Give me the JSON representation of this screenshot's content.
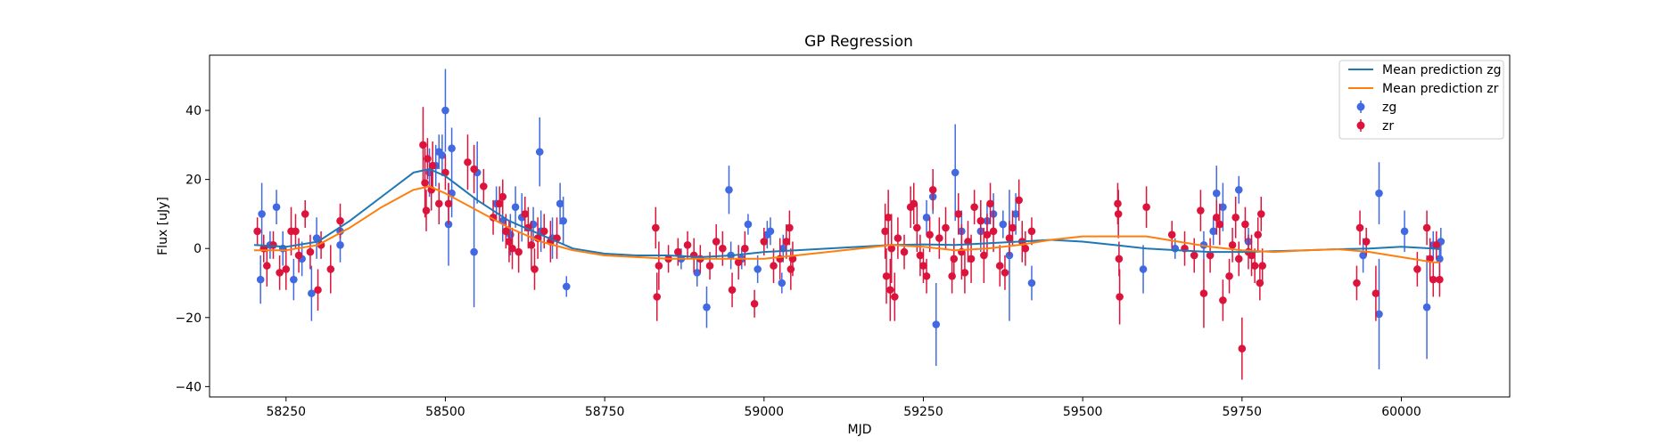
{
  "chart_data": {
    "type": "scatter",
    "title": "GP Regression",
    "xlabel": "MJD",
    "ylabel": "Flux [uJy]",
    "xlim": [
      58130,
      60170
    ],
    "ylim": [
      -43,
      56
    ],
    "xticks": [
      58250,
      58500,
      58750,
      59000,
      59250,
      59500,
      59750,
      60000
    ],
    "yticks": [
      -40,
      -20,
      0,
      20,
      40
    ],
    "grid": false,
    "legend_position": "top-right",
    "legend": [
      "Mean prediction zg",
      "Mean prediction zr",
      "zg",
      "zr"
    ],
    "series": [
      {
        "name": "zg",
        "kind": "errorbar",
        "color": "#4169e1",
        "points": [
          [
            58210,
            -9,
            7
          ],
          [
            58212,
            10,
            9
          ],
          [
            58225,
            1,
            4
          ],
          [
            58235,
            12,
            5
          ],
          [
            58245,
            0,
            5
          ],
          [
            58262,
            -9,
            6
          ],
          [
            58275,
            -3,
            5
          ],
          [
            58290,
            -13,
            8
          ],
          [
            58298,
            3,
            6
          ],
          [
            58335,
            1,
            5
          ],
          [
            58335,
            5,
            5
          ],
          [
            58475,
            22,
            7
          ],
          [
            58485,
            24,
            6
          ],
          [
            58490,
            28,
            5
          ],
          [
            58495,
            27,
            6
          ],
          [
            58500,
            40,
            12
          ],
          [
            58505,
            7,
            12
          ],
          [
            58510,
            29,
            6
          ],
          [
            58510,
            16,
            7
          ],
          [
            58545,
            -1,
            16
          ],
          [
            58550,
            22,
            9
          ],
          [
            58580,
            13,
            5
          ],
          [
            58590,
            8,
            6
          ],
          [
            58602,
            4,
            6
          ],
          [
            58610,
            12,
            6
          ],
          [
            58620,
            9,
            7
          ],
          [
            58638,
            7,
            5
          ],
          [
            58648,
            28,
            10
          ],
          [
            58650,
            5,
            6
          ],
          [
            58668,
            3,
            6
          ],
          [
            58680,
            13,
            6
          ],
          [
            58685,
            8,
            7
          ],
          [
            58690,
            -11,
            3
          ],
          [
            58870,
            -3,
            3
          ],
          [
            58895,
            -7,
            4
          ],
          [
            58910,
            -17,
            6
          ],
          [
            58945,
            17,
            7
          ],
          [
            58948,
            -2,
            4
          ],
          [
            58965,
            -3,
            3
          ],
          [
            58975,
            7,
            3
          ],
          [
            58990,
            -6,
            4
          ],
          [
            59005,
            4,
            4
          ],
          [
            59010,
            5,
            4
          ],
          [
            59028,
            -10,
            3
          ],
          [
            59030,
            0,
            4
          ],
          [
            59255,
            9,
            5
          ],
          [
            59265,
            15,
            5
          ],
          [
            59270,
            -22,
            12
          ],
          [
            59300,
            22,
            14
          ],
          [
            59310,
            5,
            6
          ],
          [
            59340,
            5,
            6
          ],
          [
            59350,
            8,
            5
          ],
          [
            59360,
            10,
            6
          ],
          [
            59375,
            7,
            4
          ],
          [
            59385,
            -2,
            19
          ],
          [
            59395,
            10,
            6
          ],
          [
            59420,
            -10,
            5
          ],
          [
            59595,
            -6,
            7
          ],
          [
            59645,
            0,
            3
          ],
          [
            59690,
            1,
            4
          ],
          [
            59705,
            5,
            4
          ],
          [
            59710,
            16,
            8
          ],
          [
            59720,
            12,
            7
          ],
          [
            59745,
            17,
            4
          ],
          [
            59760,
            2,
            4
          ],
          [
            59940,
            -2,
            5
          ],
          [
            59965,
            16,
            9
          ],
          [
            59965,
            -19,
            16
          ],
          [
            60005,
            5,
            6
          ],
          [
            60040,
            -17,
            15
          ],
          [
            60050,
            1,
            4
          ],
          [
            60060,
            -3,
            6
          ],
          [
            60062,
            2,
            4
          ]
        ]
      },
      {
        "name": "zr",
        "kind": "errorbar",
        "color": "#dc143c",
        "points": [
          [
            58205,
            5,
            4
          ],
          [
            58215,
            0,
            4
          ],
          [
            58220,
            -5,
            6
          ],
          [
            58230,
            1,
            4
          ],
          [
            58240,
            -7,
            5
          ],
          [
            58250,
            -6,
            6
          ],
          [
            58258,
            5,
            7
          ],
          [
            58265,
            5,
            5
          ],
          [
            58270,
            -2,
            5
          ],
          [
            58280,
            10,
            4
          ],
          [
            58288,
            -1,
            5
          ],
          [
            58300,
            -12,
            6
          ],
          [
            58305,
            1,
            4
          ],
          [
            58320,
            -6,
            7
          ],
          [
            58335,
            8,
            5
          ],
          [
            58465,
            30,
            11
          ],
          [
            58468,
            19,
            10
          ],
          [
            58470,
            11,
            6
          ],
          [
            58472,
            26,
            6
          ],
          [
            58478,
            17,
            6
          ],
          [
            58480,
            24,
            7
          ],
          [
            58490,
            13,
            6
          ],
          [
            58500,
            22,
            5
          ],
          [
            58505,
            13,
            6
          ],
          [
            58535,
            25,
            8
          ],
          [
            58545,
            23,
            7
          ],
          [
            58560,
            18,
            5
          ],
          [
            58575,
            9,
            5
          ],
          [
            58585,
            13,
            5
          ],
          [
            58590,
            15,
            5
          ],
          [
            58595,
            5,
            5
          ],
          [
            58600,
            2,
            6
          ],
          [
            58605,
            0,
            6
          ],
          [
            58615,
            -1,
            6
          ],
          [
            58625,
            10,
            5
          ],
          [
            58630,
            6,
            6
          ],
          [
            58635,
            1,
            7
          ],
          [
            58640,
            -6,
            6
          ],
          [
            58645,
            3,
            6
          ],
          [
            58655,
            5,
            5
          ],
          [
            58665,
            2,
            6
          ],
          [
            58675,
            3,
            6
          ],
          [
            58830,
            6,
            6
          ],
          [
            58832,
            -14,
            7
          ],
          [
            58835,
            -5,
            7
          ],
          [
            58850,
            -3,
            4
          ],
          [
            58865,
            -1,
            4
          ],
          [
            58880,
            1,
            4
          ],
          [
            58890,
            -2,
            5
          ],
          [
            58900,
            -3,
            4
          ],
          [
            58915,
            -5,
            4
          ],
          [
            58925,
            2,
            5
          ],
          [
            58935,
            0,
            5
          ],
          [
            58950,
            -12,
            5
          ],
          [
            58960,
            -4,
            5
          ],
          [
            58970,
            0,
            5
          ],
          [
            58985,
            -16,
            4
          ],
          [
            59000,
            2,
            4
          ],
          [
            59015,
            -5,
            5
          ],
          [
            59025,
            -3,
            6
          ],
          [
            59035,
            2,
            5
          ],
          [
            59040,
            6,
            5
          ],
          [
            59042,
            -6,
            6
          ],
          [
            59045,
            -3,
            5
          ],
          [
            59190,
            5,
            8
          ],
          [
            59192,
            -8,
            8
          ],
          [
            59195,
            9,
            8
          ],
          [
            59198,
            -12,
            9
          ],
          [
            59200,
            0,
            10
          ],
          [
            59205,
            -14,
            7
          ],
          [
            59210,
            3,
            6
          ],
          [
            59220,
            -1,
            5
          ],
          [
            59230,
            12,
            6
          ],
          [
            59235,
            13,
            6
          ],
          [
            59240,
            6,
            7
          ],
          [
            59245,
            -2,
            6
          ],
          [
            59250,
            -5,
            5
          ],
          [
            59255,
            -8,
            5
          ],
          [
            59260,
            4,
            5
          ],
          [
            59265,
            17,
            6
          ],
          [
            59275,
            3,
            6
          ],
          [
            59285,
            6,
            6
          ],
          [
            59295,
            -8,
            5
          ],
          [
            59298,
            -3,
            6
          ],
          [
            59305,
            10,
            6
          ],
          [
            59310,
            -1,
            8
          ],
          [
            59315,
            -7,
            6
          ],
          [
            59320,
            2,
            6
          ],
          [
            59325,
            -3,
            7
          ],
          [
            59330,
            12,
            5
          ],
          [
            59340,
            8,
            6
          ],
          [
            59345,
            -2,
            8
          ],
          [
            59350,
            4,
            6
          ],
          [
            59355,
            13,
            6
          ],
          [
            59360,
            5,
            6
          ],
          [
            59370,
            -5,
            6
          ],
          [
            59378,
            -7,
            5
          ],
          [
            59385,
            3,
            5
          ],
          [
            59390,
            6,
            5
          ],
          [
            59400,
            14,
            6
          ],
          [
            59405,
            2,
            6
          ],
          [
            59410,
            0,
            5
          ],
          [
            59420,
            5,
            4
          ],
          [
            59555,
            13,
            6
          ],
          [
            59556,
            10,
            7
          ],
          [
            59557,
            -3,
            5
          ],
          [
            59558,
            -14,
            8
          ],
          [
            59600,
            12,
            6
          ],
          [
            59640,
            4,
            4
          ],
          [
            59660,
            0,
            5
          ],
          [
            59675,
            -2,
            5
          ],
          [
            59685,
            11,
            6
          ],
          [
            59690,
            -13,
            10
          ],
          [
            59700,
            -2,
            5
          ],
          [
            59710,
            9,
            5
          ],
          [
            59715,
            7,
            6
          ],
          [
            59720,
            -15,
            6
          ],
          [
            59730,
            -8,
            5
          ],
          [
            59735,
            1,
            5
          ],
          [
            59740,
            9,
            6
          ],
          [
            59745,
            -3,
            5
          ],
          [
            59750,
            -29,
            9
          ],
          [
            59755,
            7,
            5
          ],
          [
            59760,
            -1,
            5
          ],
          [
            59765,
            -2,
            6
          ],
          [
            59770,
            -5,
            5
          ],
          [
            59775,
            4,
            5
          ],
          [
            59778,
            -10,
            5
          ],
          [
            59780,
            10,
            5
          ],
          [
            59782,
            -5,
            5
          ],
          [
            59930,
            -10,
            5
          ],
          [
            59935,
            6,
            5
          ],
          [
            59945,
            2,
            4
          ],
          [
            59960,
            -13,
            8
          ],
          [
            60025,
            -6,
            5
          ],
          [
            60040,
            6,
            5
          ],
          [
            60045,
            -3,
            6
          ],
          [
            60050,
            -9,
            5
          ],
          [
            60055,
            1,
            4
          ],
          [
            60060,
            -9,
            5
          ]
        ]
      },
      {
        "name": "Mean prediction zg",
        "kind": "line",
        "color": "#1f77b4",
        "x": [
          58200,
          58250,
          58300,
          58350,
          58400,
          58450,
          58475,
          58500,
          58550,
          58600,
          58650,
          58700,
          58750,
          58800,
          58850,
          58900,
          58950,
          59000,
          59050,
          59100,
          59150,
          59200,
          59250,
          59300,
          59350,
          59400,
          59450,
          59500,
          59550,
          59600,
          59650,
          59700,
          59750,
          59800,
          59850,
          59900,
          59950,
          60000,
          60050,
          60060
        ],
        "y": [
          1,
          0.5,
          2,
          8,
          15,
          22,
          23,
          21,
          14,
          8,
          4,
          0,
          -1.5,
          -2,
          -2,
          -2.5,
          -2,
          -1,
          -0.5,
          0,
          0.5,
          1,
          1.2,
          1,
          1.5,
          2,
          2.5,
          2,
          1,
          0,
          -0.5,
          -1,
          -1,
          -0.8,
          -0.5,
          -0.2,
          0,
          0.5,
          0,
          -0.2
        ]
      },
      {
        "name": "Mean prediction zr",
        "kind": "line",
        "color": "#ff7f0e",
        "x": [
          58200,
          58250,
          58300,
          58350,
          58400,
          58450,
          58475,
          58500,
          58550,
          58600,
          58650,
          58700,
          58750,
          58800,
          58850,
          58900,
          58950,
          59000,
          59050,
          59100,
          59150,
          59200,
          59250,
          59300,
          59350,
          59400,
          59450,
          59500,
          59550,
          59600,
          59650,
          59700,
          59750,
          59800,
          59850,
          59900,
          59950,
          60000,
          60050,
          60060
        ],
        "y": [
          -0.5,
          -0.5,
          1,
          6,
          12,
          17,
          18,
          16,
          11,
          6,
          2,
          -0.5,
          -2,
          -2.5,
          -3,
          -3,
          -3,
          -3,
          -2,
          -1,
          0,
          1,
          0.5,
          -0.5,
          0,
          1,
          2.5,
          3.5,
          3.5,
          3.5,
          2,
          0.5,
          -0.5,
          -1,
          -0.5,
          -0.2,
          -1,
          -2.5,
          -4,
          -4
        ]
      }
    ]
  }
}
